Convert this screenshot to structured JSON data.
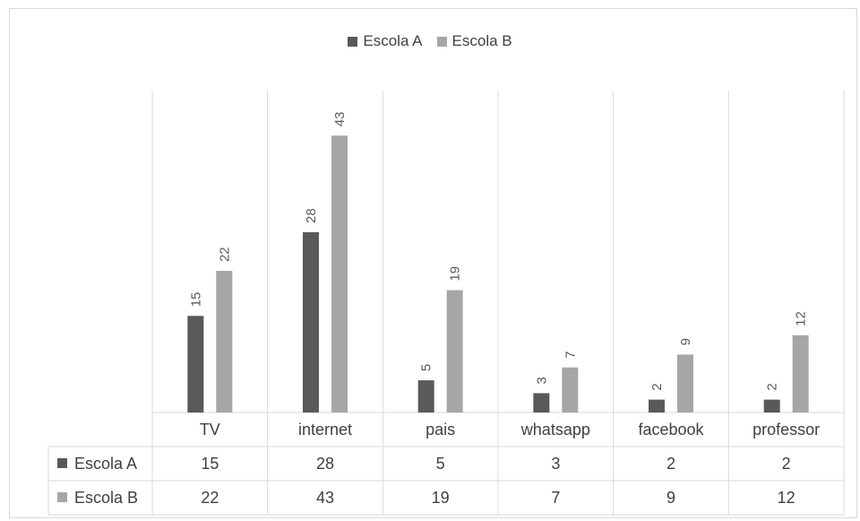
{
  "chart_data": {
    "type": "bar",
    "categories": [
      "TV",
      "internet",
      "pais",
      "whatsapp",
      "facebook",
      "professor"
    ],
    "series": [
      {
        "name": "Escola A",
        "values": [
          15,
          28,
          5,
          3,
          2,
          2
        ],
        "color": "#595959"
      },
      {
        "name": "Escola B",
        "values": [
          22,
          43,
          19,
          7,
          9,
          12
        ],
        "color": "#a6a6a6"
      }
    ],
    "title": "",
    "xlabel": "",
    "ylabel": "",
    "ylim": [
      0,
      50
    ],
    "grid": true,
    "legend": "top",
    "data_table": true
  }
}
